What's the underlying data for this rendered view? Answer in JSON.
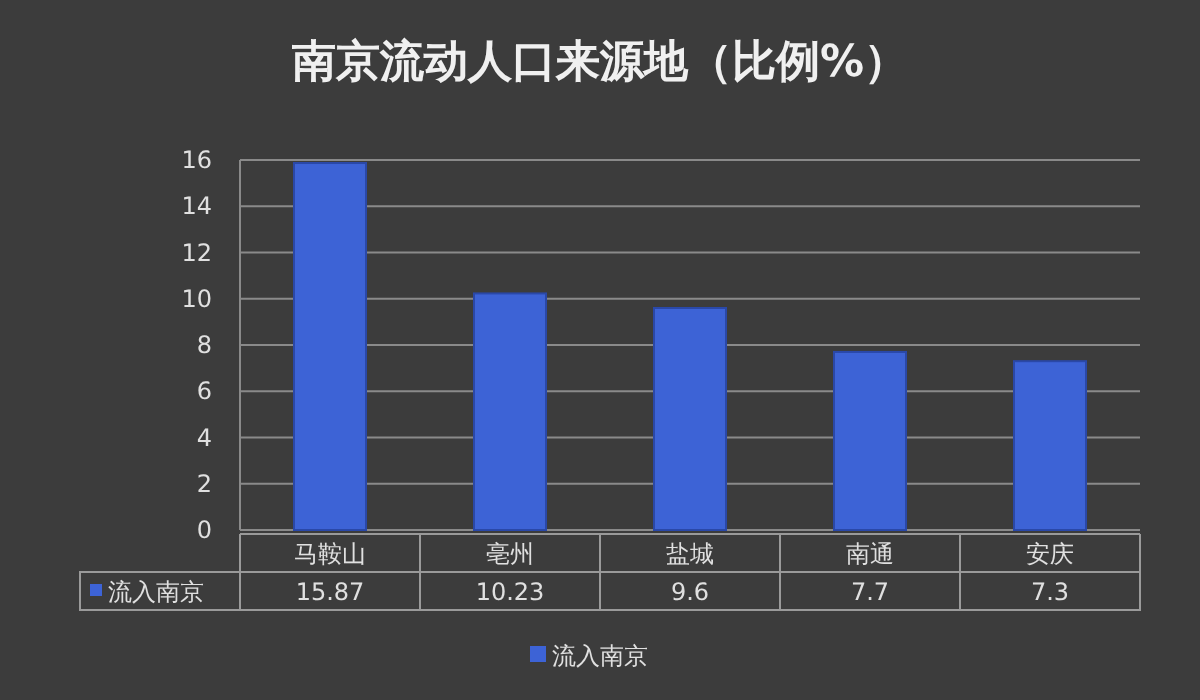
{
  "chart_data": {
    "type": "bar",
    "title": "南京流动人口来源地（比例%）",
    "categories": [
      "马鞍山",
      "亳州",
      "盐城",
      "南通",
      "安庆"
    ],
    "series": [
      {
        "name": "流入南京",
        "color": "#3d63d6",
        "values": [
          15.87,
          10.23,
          9.6,
          7.7,
          7.3
        ]
      }
    ],
    "ylim": [
      0,
      16
    ],
    "yticks": [
      0,
      2,
      4,
      6,
      8,
      10,
      12,
      14,
      16
    ],
    "grid": "y",
    "legend": "bottom",
    "data_labels": true
  }
}
